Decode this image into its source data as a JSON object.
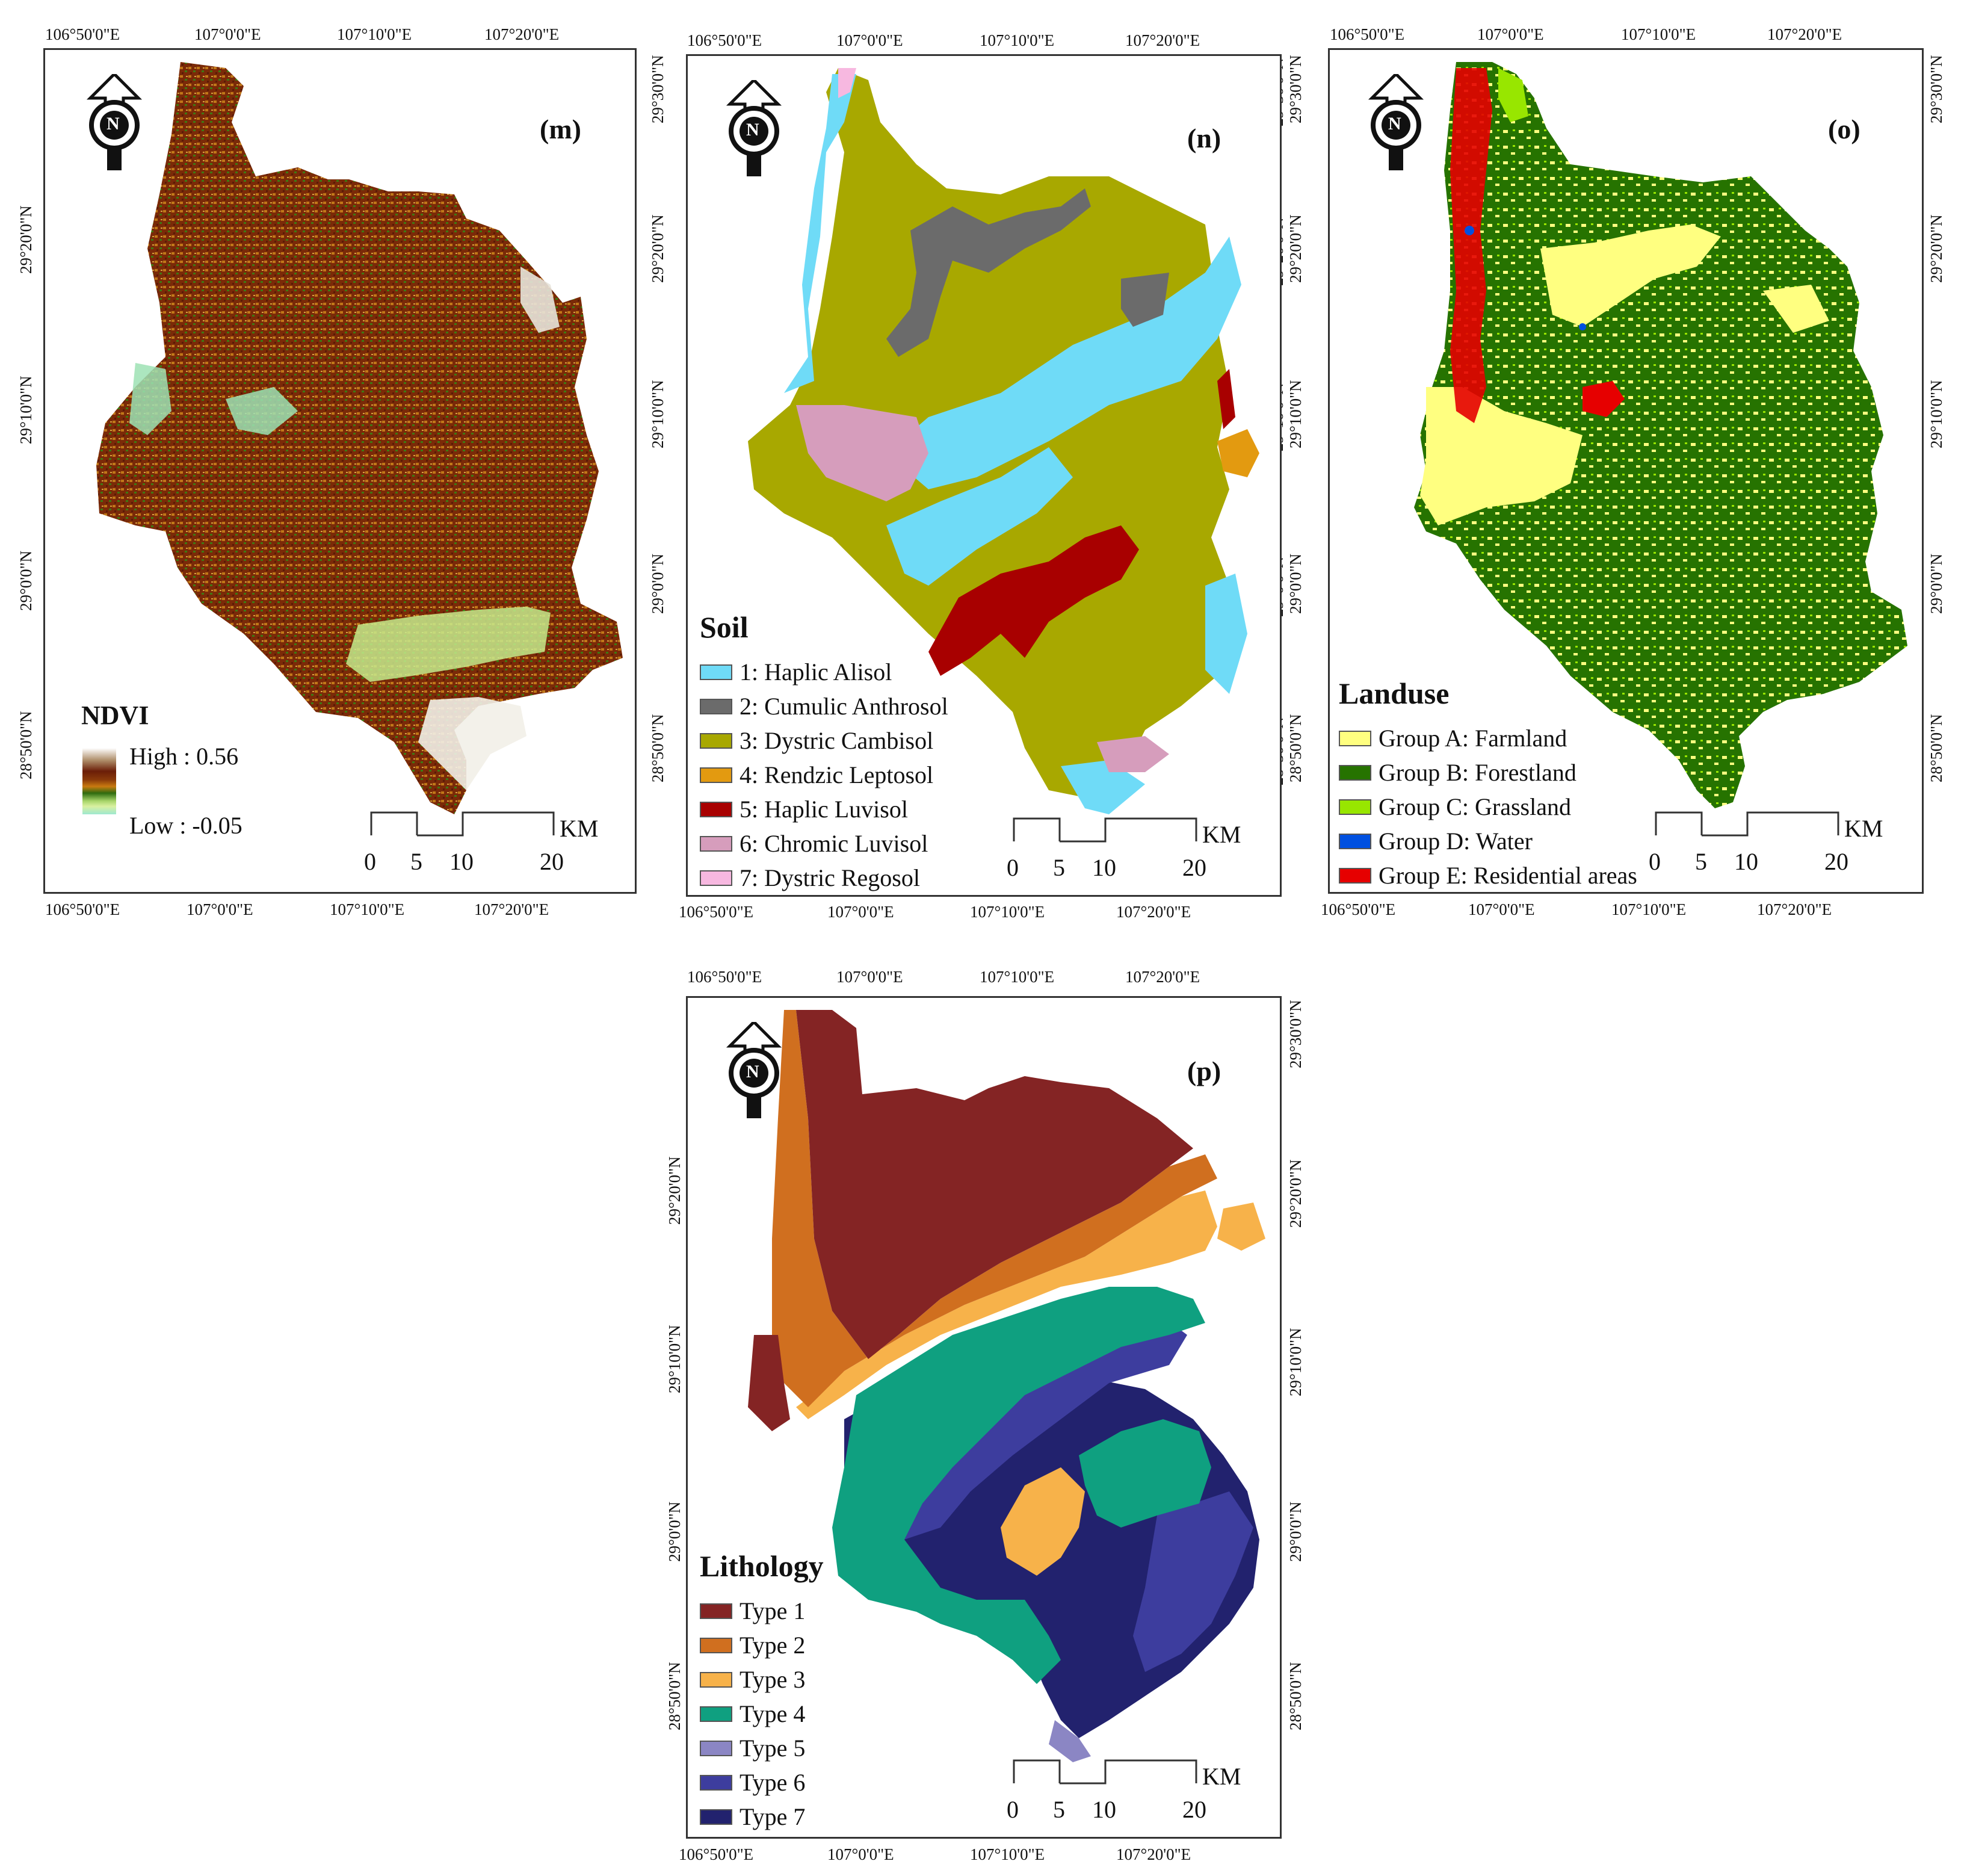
{
  "panels": {
    "m": {
      "label": "(m)",
      "top_coords": [
        "106°50'0\"E",
        "107°0'0\"E",
        "107°10'0\"E",
        "107°20'0\"E"
      ],
      "bottom_coords": [
        "106°50'0\"E",
        "107°0'0\"E",
        "107°10'0\"E",
        "107°20'0\"E"
      ],
      "left_coords": [
        "29°20'0\"N",
        "29°10'0\"N",
        "29°0'0\"N",
        "28°50'0\"N"
      ],
      "legend_title": "NDVI",
      "legend_high": "High : 0.56",
      "legend_low": "Low : -0.05",
      "ramp_colors": [
        "#ffffff",
        "#b0906c",
        "#6b1e08",
        "#8a3a0a",
        "#c97a10",
        "#2e6b0e",
        "#a8d56a",
        "#d9f0a0",
        "#9ee8d0"
      ]
    },
    "n": {
      "label": "(n)",
      "top_coords": [
        "106°50'0\"E",
        "107°0'0\"E",
        "107°10'0\"E",
        "107°20'0\"E"
      ],
      "bottom_coords": [
        "106°50'0\"E",
        "107°0'0\"E",
        "107°10'0\"E",
        "107°20'0\"E"
      ],
      "left_coords": [
        "29°30'0\"N",
        "29°20'0\"N",
        "29°10'0\"N",
        "29°0'0\"N",
        "28°50'0\"N"
      ],
      "right_coords": [
        "29°30'0\"N",
        "29°20'0\"N",
        "29°10'0\"N",
        "29°0'0\"N",
        "28°50'0\"N"
      ],
      "legend_title": "Soil",
      "legend": [
        {
          "label": "1: Haplic Alisol",
          "color": "#6fdbf7"
        },
        {
          "label": "2: Cumulic Anthrosol",
          "color": "#6b6b6b"
        },
        {
          "label": "3: Dystric Cambisol",
          "color": "#a8a800"
        },
        {
          "label": "4: Rendzic Leptosol",
          "color": "#e39a10"
        },
        {
          "label": "5: Haplic Luvisol",
          "color": "#a80000"
        },
        {
          "label": "6: Chromic Luvisol",
          "color": "#d69dbc"
        },
        {
          "label": "7: Dystric Regosol",
          "color": "#f7b8e0"
        }
      ]
    },
    "o": {
      "label": "(o)",
      "top_coords": [
        "106°50'0\"E",
        "107°0'0\"E",
        "107°10'0\"E",
        "107°20'0\"E"
      ],
      "bottom_coords": [
        "106°50'0\"E",
        "107°0'0\"E",
        "107°10'0\"E",
        "107°20'0\"E"
      ],
      "left_coords": [
        "29°30'0\"N",
        "29°20'0\"N",
        "29°10'0\"N",
        "29°0'0\"N",
        "28°50'0\"N"
      ],
      "right_coords": [
        "29°30'0\"N",
        "29°20'0\"N",
        "29°10'0\"N",
        "29°0'0\"N",
        "28°50'0\"N"
      ],
      "legend_title": "Landuse",
      "legend": [
        {
          "label": "Group A: Farmland",
          "color": "#ffff80"
        },
        {
          "label": "Group B: Forestland",
          "color": "#267300"
        },
        {
          "label": "Group C: Grassland",
          "color": "#98e600"
        },
        {
          "label": "Group D: Water",
          "color": "#0050e0"
        },
        {
          "label": "Group E: Residential areas",
          "color": "#e60000"
        }
      ]
    },
    "p": {
      "label": "(p)",
      "top_coords": [
        "106°50'0\"E",
        "107°0'0\"E",
        "107°10'0\"E",
        "107°20'0\"E"
      ],
      "bottom_coords": [
        "106°50'0\"E",
        "107°0'0\"E",
        "107°10'0\"E",
        "107°20'0\"E"
      ],
      "left_coords": [
        "29°20'0\"N",
        "29°10'0\"N",
        "29°0'0\"N",
        "28°50'0\"N"
      ],
      "right_coords": [
        "29°30'0\"N",
        "29°20'0\"N",
        "29°10'0\"N",
        "29°0'0\"N",
        "28°50'0\"N"
      ],
      "legend_title": "Lithology",
      "legend": [
        {
          "label": "Type 1",
          "color": "#842424"
        },
        {
          "label": "Type 2",
          "color": "#d06f1f"
        },
        {
          "label": "Type 3",
          "color": "#f7b24a"
        },
        {
          "label": "Type 4",
          "color": "#0fa080"
        },
        {
          "label": "Type 5",
          "color": "#8b86c4"
        },
        {
          "label": "Type 6",
          "color": "#3d3d9e"
        },
        {
          "label": "Type 7",
          "color": "#22226e"
        }
      ]
    }
  },
  "scale_bar": {
    "ticks": [
      "0",
      "5",
      "10",
      "20"
    ],
    "unit": "KM"
  },
  "north_arrow": {
    "letter": "N"
  }
}
